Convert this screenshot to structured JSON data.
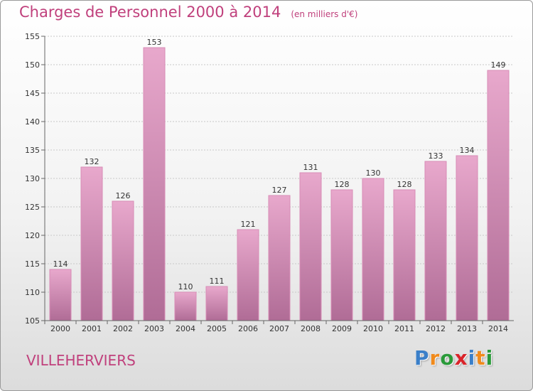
{
  "chart_data": {
    "type": "bar",
    "title": "Charges de Personnel 2000 à 2014",
    "subtitle": "(en milliers d'€)",
    "categories": [
      "2000",
      "2001",
      "2002",
      "2003",
      "2004",
      "2005",
      "2006",
      "2007",
      "2008",
      "2009",
      "2010",
      "2011",
      "2012",
      "2013",
      "2014"
    ],
    "values": [
      114,
      132,
      126,
      153,
      110,
      111,
      121,
      127,
      131,
      128,
      130,
      128,
      133,
      134,
      149
    ],
    "ylim": [
      105,
      155
    ],
    "yticks": [
      105,
      110,
      115,
      120,
      125,
      130,
      135,
      140,
      145,
      150,
      155
    ],
    "grid": true,
    "bar_color_top": "#e8a8cc",
    "bar_color_bottom": "#b06c96"
  },
  "commune": "VILLEHERVIERS",
  "logo": {
    "letters": [
      "P",
      "r",
      "o",
      "x",
      "i",
      "t",
      "i"
    ],
    "colors": [
      "#3a7fc9",
      "#f08a1c",
      "#2a9a3a",
      "#d9242a",
      "#3a7fc9",
      "#f08a1c",
      "#2a9a3a"
    ]
  }
}
